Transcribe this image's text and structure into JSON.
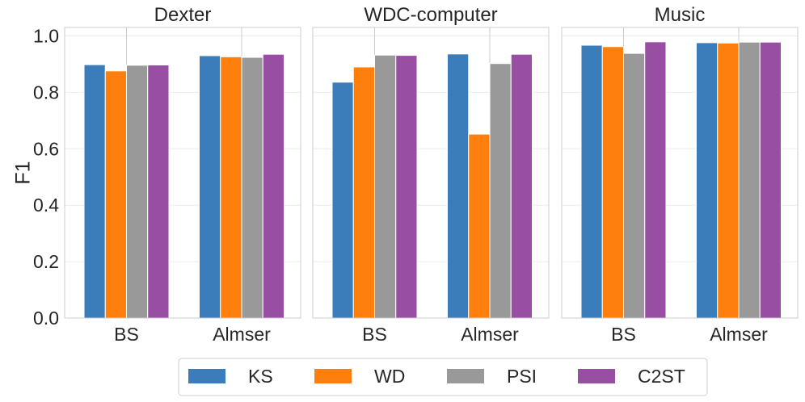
{
  "chart_data": {
    "type": "bar",
    "ylabel": "F1",
    "ylim": [
      0,
      1.03
    ],
    "yticks": [
      "0.0",
      "0.2",
      "0.4",
      "0.6",
      "0.8",
      "1.0"
    ],
    "ytick_values": [
      0,
      0.2,
      0.4,
      0.6,
      0.8,
      1.0
    ],
    "grid": true,
    "legend_position": "bottom-center",
    "legend": [
      {
        "name": "KS",
        "color": "#3a7dba"
      },
      {
        "name": "WD",
        "color": "#ff7f0e"
      },
      {
        "name": "PSI",
        "color": "#999999"
      },
      {
        "name": "C2ST",
        "color": "#984ea3"
      }
    ],
    "panels": [
      {
        "title": "Dexter",
        "categories": [
          "BS",
          "Almser"
        ],
        "series": [
          {
            "name": "KS",
            "values": [
              0.898,
              0.93
            ]
          },
          {
            "name": "WD",
            "values": [
              0.876,
              0.926
            ]
          },
          {
            "name": "PSI",
            "values": [
              0.896,
              0.924
            ]
          },
          {
            "name": "C2ST",
            "values": [
              0.897,
              0.935
            ]
          }
        ]
      },
      {
        "title": "WDC-computer",
        "categories": [
          "BS",
          "Almser"
        ],
        "series": [
          {
            "name": "KS",
            "values": [
              0.836,
              0.936
            ]
          },
          {
            "name": "WD",
            "values": [
              0.89,
              0.652
            ]
          },
          {
            "name": "PSI",
            "values": [
              0.932,
              0.902
            ]
          },
          {
            "name": "C2ST",
            "values": [
              0.931,
              0.935
            ]
          }
        ]
      },
      {
        "title": "Music",
        "categories": [
          "BS",
          "Almser"
        ],
        "series": [
          {
            "name": "KS",
            "values": [
              0.967,
              0.976
            ]
          },
          {
            "name": "WD",
            "values": [
              0.962,
              0.975
            ]
          },
          {
            "name": "PSI",
            "values": [
              0.938,
              0.978
            ]
          },
          {
            "name": "C2ST",
            "values": [
              0.979,
              0.978
            ]
          }
        ]
      }
    ]
  }
}
